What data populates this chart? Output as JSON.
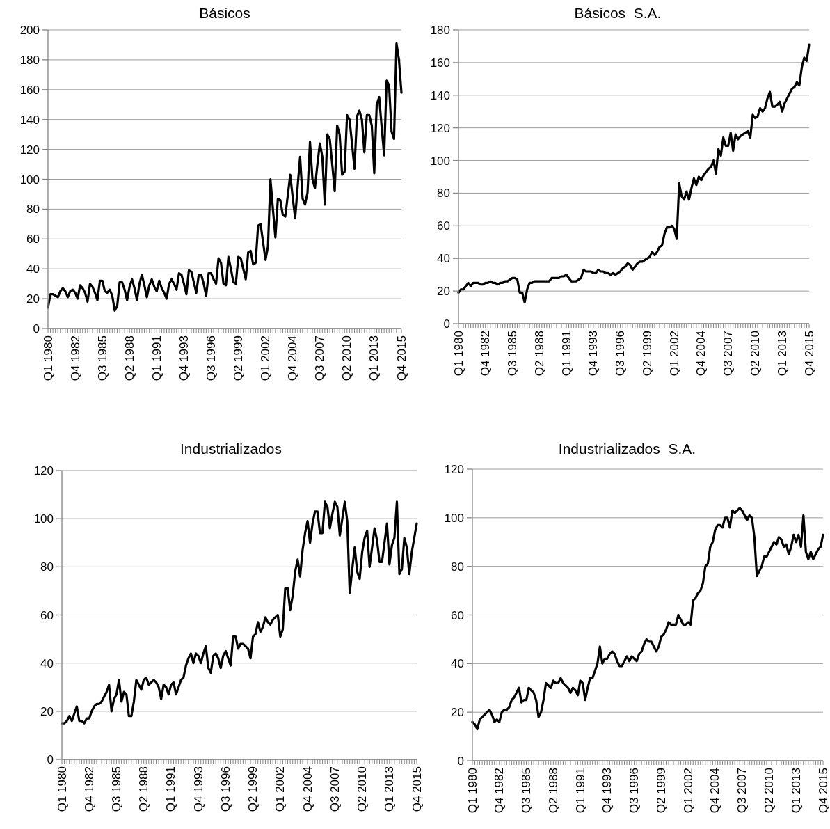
{
  "chart_data": [
    {
      "type": "line",
      "title": "Básicos",
      "color": "#000000",
      "grid": "y",
      "ylim": [
        0,
        200
      ],
      "yticks": [
        0,
        20,
        40,
        60,
        80,
        100,
        120,
        140,
        160,
        180,
        200
      ],
      "categories": [
        "Q1 1980",
        null,
        null,
        null,
        null,
        null,
        null,
        null,
        null,
        null,
        null,
        "Q4 1982",
        null,
        null,
        null,
        null,
        null,
        null,
        null,
        null,
        null,
        null,
        "Q3 1985",
        null,
        null,
        null,
        null,
        null,
        null,
        null,
        null,
        null,
        null,
        "Q2 1988",
        null,
        null,
        null,
        null,
        null,
        null,
        null,
        null,
        null,
        null,
        "Q1 1991",
        null,
        null,
        null,
        null,
        null,
        null,
        null,
        null,
        null,
        null,
        "Q4 1993",
        null,
        null,
        null,
        null,
        null,
        null,
        null,
        null,
        null,
        null,
        "Q3 1996",
        null,
        null,
        null,
        null,
        null,
        null,
        null,
        null,
        null,
        null,
        "Q2 1999",
        null,
        null,
        null,
        null,
        null,
        null,
        null,
        null,
        null,
        null,
        "Q1 2002",
        null,
        null,
        null,
        null,
        null,
        null,
        null,
        null,
        null,
        null,
        "Q4 2004",
        null,
        null,
        null,
        null,
        null,
        null,
        null,
        null,
        null,
        null,
        "Q3 2007",
        null,
        null,
        null,
        null,
        null,
        null,
        null,
        null,
        null,
        null,
        "Q2 2010",
        null,
        null,
        null,
        null,
        null,
        null,
        null,
        null,
        null,
        null,
        "Q1 2013",
        null,
        null,
        null,
        null,
        null,
        null,
        null,
        null,
        null,
        null,
        "Q4 2015"
      ],
      "values": [
        14,
        23,
        23,
        22,
        21,
        25,
        27,
        25,
        21,
        25,
        26,
        24,
        20,
        29,
        27,
        24,
        18,
        30,
        28,
        24,
        19,
        32,
        32,
        25,
        24,
        26,
        22,
        12,
        15,
        31,
        31,
        26,
        19,
        28,
        33,
        27,
        19,
        30,
        36,
        29,
        21,
        29,
        33,
        28,
        25,
        32,
        27,
        24,
        20,
        30,
        33,
        30,
        26,
        37,
        36,
        30,
        23,
        39,
        38,
        31,
        24,
        36,
        36,
        30,
        22,
        37,
        37,
        33,
        30,
        47,
        44,
        30,
        29,
        48,
        40,
        31,
        30,
        48,
        47,
        40,
        33,
        51,
        52,
        43,
        44,
        69,
        70,
        58,
        46,
        55,
        100,
        80,
        61,
        87,
        86,
        76,
        75,
        89,
        103,
        88,
        74,
        95,
        115,
        87,
        83,
        91,
        125,
        100,
        94,
        110,
        124,
        115,
        83,
        130,
        127,
        110,
        92,
        136,
        130,
        103,
        105,
        143,
        140,
        124,
        107,
        142,
        146,
        140,
        118,
        143,
        143,
        136,
        104,
        150,
        155,
        135,
        116,
        166,
        163,
        132,
        127,
        191,
        180,
        158
      ]
    },
    {
      "type": "line",
      "title": "Básicos  S.A.",
      "color": "#000000",
      "grid": "y",
      "ylim": [
        0,
        180
      ],
      "yticks": [
        0,
        20,
        40,
        60,
        80,
        100,
        120,
        140,
        160,
        180
      ],
      "categories": [
        "Q1 1980",
        null,
        null,
        null,
        null,
        null,
        null,
        null,
        null,
        null,
        null,
        "Q4 1982",
        null,
        null,
        null,
        null,
        null,
        null,
        null,
        null,
        null,
        null,
        "Q3 1985",
        null,
        null,
        null,
        null,
        null,
        null,
        null,
        null,
        null,
        null,
        "Q2 1988",
        null,
        null,
        null,
        null,
        null,
        null,
        null,
        null,
        null,
        null,
        "Q1 1991",
        null,
        null,
        null,
        null,
        null,
        null,
        null,
        null,
        null,
        null,
        "Q4 1993",
        null,
        null,
        null,
        null,
        null,
        null,
        null,
        null,
        null,
        null,
        "Q3 1996",
        null,
        null,
        null,
        null,
        null,
        null,
        null,
        null,
        null,
        null,
        "Q2 1999",
        null,
        null,
        null,
        null,
        null,
        null,
        null,
        null,
        null,
        null,
        "Q1 2002",
        null,
        null,
        null,
        null,
        null,
        null,
        null,
        null,
        null,
        null,
        "Q4 2004",
        null,
        null,
        null,
        null,
        null,
        null,
        null,
        null,
        null,
        null,
        "Q3 2007",
        null,
        null,
        null,
        null,
        null,
        null,
        null,
        null,
        null,
        null,
        "Q2 2010",
        null,
        null,
        null,
        null,
        null,
        null,
        null,
        null,
        null,
        null,
        "Q1 2013",
        null,
        null,
        null,
        null,
        null,
        null,
        null,
        null,
        null,
        null,
        "Q4 2015"
      ],
      "values": [
        19,
        21,
        21,
        23,
        25,
        23,
        25,
        25,
        25,
        24,
        24,
        25,
        25,
        26,
        25,
        25,
        24,
        25,
        25,
        26,
        26,
        27,
        28,
        28,
        27,
        19,
        19,
        13,
        21,
        25,
        25,
        26,
        26,
        26,
        26,
        26,
        26,
        26,
        28,
        28,
        28,
        28,
        29,
        29,
        30,
        28,
        26,
        26,
        26,
        27,
        28,
        33,
        32,
        32,
        32,
        31,
        31,
        33,
        32,
        32,
        31,
        31,
        30,
        31,
        30,
        31,
        32,
        34,
        35,
        37,
        36,
        33,
        35,
        37,
        38,
        38,
        39,
        40,
        41,
        44,
        42,
        44,
        47,
        48,
        55,
        59,
        59,
        60,
        58,
        52,
        86,
        78,
        76,
        81,
        76,
        83,
        89,
        85,
        90,
        88,
        91,
        93,
        95,
        96,
        100,
        92,
        107,
        103,
        114,
        109,
        109,
        117,
        106,
        116,
        113,
        115,
        116,
        117,
        118,
        114,
        128,
        126,
        127,
        132,
        130,
        132,
        138,
        142,
        133,
        133,
        134,
        136,
        130,
        135,
        138,
        141,
        144,
        145,
        148,
        146,
        157,
        163,
        161,
        171
      ]
    },
    {
      "type": "line",
      "title": "Industrializados",
      "color": "#000000",
      "grid": "y",
      "ylim": [
        0,
        120
      ],
      "yticks": [
        0,
        20,
        40,
        60,
        80,
        100,
        120
      ],
      "categories": [
        "Q1 1980",
        null,
        null,
        null,
        null,
        null,
        null,
        null,
        null,
        null,
        null,
        "Q4 1982",
        null,
        null,
        null,
        null,
        null,
        null,
        null,
        null,
        null,
        null,
        "Q3 1985",
        null,
        null,
        null,
        null,
        null,
        null,
        null,
        null,
        null,
        null,
        "Q2 1988",
        null,
        null,
        null,
        null,
        null,
        null,
        null,
        null,
        null,
        null,
        "Q1 1991",
        null,
        null,
        null,
        null,
        null,
        null,
        null,
        null,
        null,
        null,
        "Q4 1993",
        null,
        null,
        null,
        null,
        null,
        null,
        null,
        null,
        null,
        null,
        "Q3 1996",
        null,
        null,
        null,
        null,
        null,
        null,
        null,
        null,
        null,
        null,
        "Q2 1999",
        null,
        null,
        null,
        null,
        null,
        null,
        null,
        null,
        null,
        null,
        "Q1 2002",
        null,
        null,
        null,
        null,
        null,
        null,
        null,
        null,
        null,
        null,
        "Q4 2004",
        null,
        null,
        null,
        null,
        null,
        null,
        null,
        null,
        null,
        null,
        "Q3 2007",
        null,
        null,
        null,
        null,
        null,
        null,
        null,
        null,
        null,
        null,
        "Q2 2010",
        null,
        null,
        null,
        null,
        null,
        null,
        null,
        null,
        null,
        null,
        "Q1 2013",
        null,
        null,
        null,
        null,
        null,
        null,
        null,
        null,
        null,
        null,
        "Q4 2015"
      ],
      "values": [
        15,
        15,
        16,
        18,
        16,
        19,
        22,
        16,
        16,
        15,
        17,
        17,
        20,
        22,
        23,
        23,
        24,
        26,
        28,
        31,
        20,
        25,
        27,
        33,
        24,
        28,
        27,
        18,
        18,
        24,
        33,
        31,
        29,
        33,
        34,
        31,
        32,
        33,
        32,
        30,
        25,
        31,
        30,
        27,
        31,
        32,
        27,
        30,
        33,
        34,
        39,
        42,
        44,
        40,
        44,
        43,
        40,
        44,
        47,
        38,
        36,
        43,
        44,
        42,
        38,
        43,
        45,
        42,
        39,
        51,
        51,
        46,
        48,
        48,
        47,
        46,
        42,
        51,
        52,
        57,
        53,
        55,
        59,
        57,
        56,
        58,
        59,
        60,
        51,
        54,
        71,
        71,
        62,
        68,
        78,
        83,
        76,
        87,
        94,
        99,
        90,
        98,
        103,
        103,
        94,
        94,
        107,
        105,
        96,
        102,
        107,
        105,
        93,
        100,
        107,
        99,
        69,
        79,
        88,
        78,
        75,
        86,
        92,
        95,
        80,
        88,
        96,
        91,
        82,
        82,
        90,
        98,
        81,
        89,
        92,
        107,
        77,
        79,
        92,
        88,
        77,
        86,
        92,
        98
      ]
    },
    {
      "type": "line",
      "title": "Industrializados  S.A.",
      "color": "#000000",
      "grid": "y",
      "ylim": [
        0,
        120
      ],
      "yticks": [
        0,
        20,
        40,
        60,
        80,
        100,
        120
      ],
      "categories": [
        "Q1 1980",
        null,
        null,
        null,
        null,
        null,
        null,
        null,
        null,
        null,
        null,
        "Q4 1982",
        null,
        null,
        null,
        null,
        null,
        null,
        null,
        null,
        null,
        null,
        "Q3 1985",
        null,
        null,
        null,
        null,
        null,
        null,
        null,
        null,
        null,
        null,
        "Q2 1988",
        null,
        null,
        null,
        null,
        null,
        null,
        null,
        null,
        null,
        null,
        "Q1 1991",
        null,
        null,
        null,
        null,
        null,
        null,
        null,
        null,
        null,
        null,
        "Q4 1993",
        null,
        null,
        null,
        null,
        null,
        null,
        null,
        null,
        null,
        null,
        "Q3 1996",
        null,
        null,
        null,
        null,
        null,
        null,
        null,
        null,
        null,
        null,
        "Q2 1999",
        null,
        null,
        null,
        null,
        null,
        null,
        null,
        null,
        null,
        null,
        "Q1 2002",
        null,
        null,
        null,
        null,
        null,
        null,
        null,
        null,
        null,
        null,
        "Q4 2004",
        null,
        null,
        null,
        null,
        null,
        null,
        null,
        null,
        null,
        null,
        "Q3 2007",
        null,
        null,
        null,
        null,
        null,
        null,
        null,
        null,
        null,
        null,
        "Q2 2010",
        null,
        null,
        null,
        null,
        null,
        null,
        null,
        null,
        null,
        null,
        "Q1 2013",
        null,
        null,
        null,
        null,
        null,
        null,
        null,
        null,
        null,
        null,
        "Q4 2015"
      ],
      "values": [
        16,
        15,
        13,
        17,
        18,
        19,
        20,
        21,
        19,
        16,
        17,
        16,
        20,
        21,
        21,
        22,
        25,
        26,
        28,
        30,
        24,
        25,
        25,
        30,
        29,
        28,
        25,
        18,
        20,
        25,
        32,
        31,
        30,
        33,
        32,
        32,
        34,
        32,
        31,
        30,
        28,
        30,
        29,
        27,
        33,
        32,
        25,
        30,
        34,
        34,
        37,
        40,
        47,
        40,
        42,
        42,
        44,
        45,
        44,
        41,
        39,
        39,
        41,
        43,
        41,
        43,
        42,
        41,
        44,
        45,
        48,
        50,
        49,
        49,
        47,
        45,
        47,
        51,
        52,
        54,
        57,
        56,
        56,
        56,
        60,
        58,
        56,
        56,
        57,
        56,
        66,
        67,
        69,
        70,
        73,
        80,
        81,
        88,
        90,
        95,
        97,
        97,
        96,
        100,
        100,
        96,
        103,
        102,
        103,
        104,
        103,
        101,
        99,
        101,
        100,
        92,
        76,
        78,
        80,
        84,
        84,
        86,
        88,
        90,
        89,
        92,
        91,
        88,
        89,
        85,
        88,
        93,
        90,
        93,
        88,
        101,
        86,
        83,
        86,
        83,
        85,
        87,
        88,
        93
      ]
    }
  ]
}
